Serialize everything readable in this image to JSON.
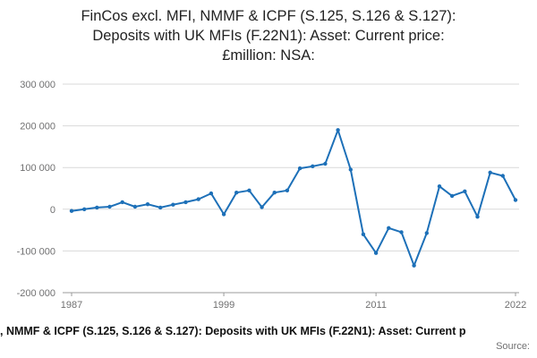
{
  "header": {
    "lines": [
      "FinCos excl. MFI, NMMF & ICPF (S.125, S.126 & S.127):",
      "Deposits with UK MFIs (F.22N1): Asset: Current price:",
      "£million: NSA:"
    ]
  },
  "footer": {
    "caption": ", NMMF & ICPF (S.125, S.126 & S.127): Deposits with UK MFIs (F.22N1): Asset: Current p",
    "source": "Source:"
  },
  "chart_data": {
    "type": "line",
    "title": "FinCos excl. MFI, NMMF & ICPF (S.125, S.126 & S.127): Deposits with UK MFIs (F.22N1): Asset: Current price: £million: NSA:",
    "xlabel": "",
    "ylabel": "",
    "x": [
      1987,
      1988,
      1989,
      1990,
      1991,
      1992,
      1993,
      1994,
      1995,
      1996,
      1997,
      1998,
      1999,
      2000,
      2001,
      2002,
      2003,
      2004,
      2005,
      2006,
      2007,
      2008,
      2009,
      2010,
      2011,
      2012,
      2013,
      2014,
      2015,
      2016,
      2017,
      2018,
      2019,
      2020,
      2021,
      2022
    ],
    "values": [
      -4000,
      0,
      4000,
      6000,
      17000,
      6000,
      12000,
      4000,
      11000,
      17000,
      24000,
      38000,
      -12000,
      40000,
      45000,
      5000,
      40000,
      45000,
      98000,
      103000,
      109000,
      190000,
      95000,
      -60000,
      -105000,
      -45000,
      -55000,
      -135000,
      -57000,
      55000,
      32000,
      43000,
      -18000,
      88000,
      80000,
      22000
    ],
    "xlim": [
      1987,
      2022
    ],
    "ylim": [
      -200000,
      300000
    ],
    "xticks": [
      1987,
      1999,
      2011,
      2022
    ],
    "xtick_labels": [
      "1987",
      "1999",
      "2011",
      "2022"
    ],
    "yticks": [
      -200000,
      -100000,
      0,
      100000,
      200000,
      300000
    ],
    "ytick_labels": [
      "-200 000",
      "-100 000",
      "0",
      "100 000",
      "200 000",
      "300 000"
    ],
    "grid": true,
    "legend": "none",
    "marker": "circle",
    "line_color": "#1d70b8",
    "grid_color": "#d9d9d9",
    "axis_color": "#9b9b9b",
    "tick_color": "#707071"
  }
}
